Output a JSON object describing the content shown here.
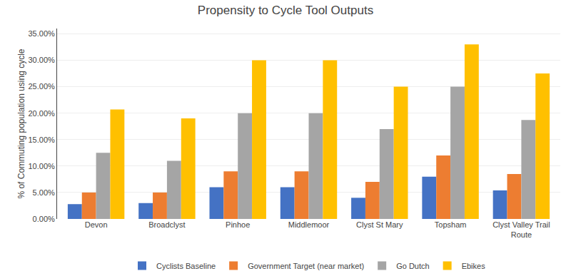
{
  "chart_data": {
    "type": "bar",
    "title": "Propensity to Cycle Tool Outputs",
    "ylabel": "% of Commuting population using cycle",
    "categories": [
      "Devon",
      "Broadclyst",
      "Pinhoe",
      "Middlemoor",
      "Clyst St Mary",
      "Topsham",
      "Clyst Valley Trail\nRoute"
    ],
    "series": [
      {
        "name": "Cyclists Baseline",
        "color": "#4472C4",
        "values": [
          0.028,
          0.03,
          0.06,
          0.06,
          0.04,
          0.08,
          0.054
        ]
      },
      {
        "name": "Government Target (near market)",
        "color": "#ED7D31",
        "values": [
          0.05,
          0.05,
          0.09,
          0.09,
          0.07,
          0.12,
          0.085
        ]
      },
      {
        "name": "Go Dutch",
        "color": "#A5A5A5",
        "values": [
          0.125,
          0.11,
          0.2,
          0.2,
          0.17,
          0.25,
          0.187
        ]
      },
      {
        "name": "Ebikes",
        "color": "#FFC000",
        "values": [
          0.207,
          0.19,
          0.3,
          0.3,
          0.25,
          0.33,
          0.275
        ]
      }
    ],
    "ylim": [
      0,
      0.36
    ],
    "yticks": [
      {
        "value": 0.0,
        "label": "0.00%"
      },
      {
        "value": 0.05,
        "label": "5.00%"
      },
      {
        "value": 0.1,
        "label": "10.00%"
      },
      {
        "value": 0.15,
        "label": "15.00%"
      },
      {
        "value": 0.2,
        "label": "20.00%"
      },
      {
        "value": 0.25,
        "label": "25.00%"
      },
      {
        "value": 0.3,
        "label": "30.00%"
      },
      {
        "value": 0.35,
        "label": "35.00%"
      }
    ],
    "grid": true,
    "legend": "bottom"
  }
}
